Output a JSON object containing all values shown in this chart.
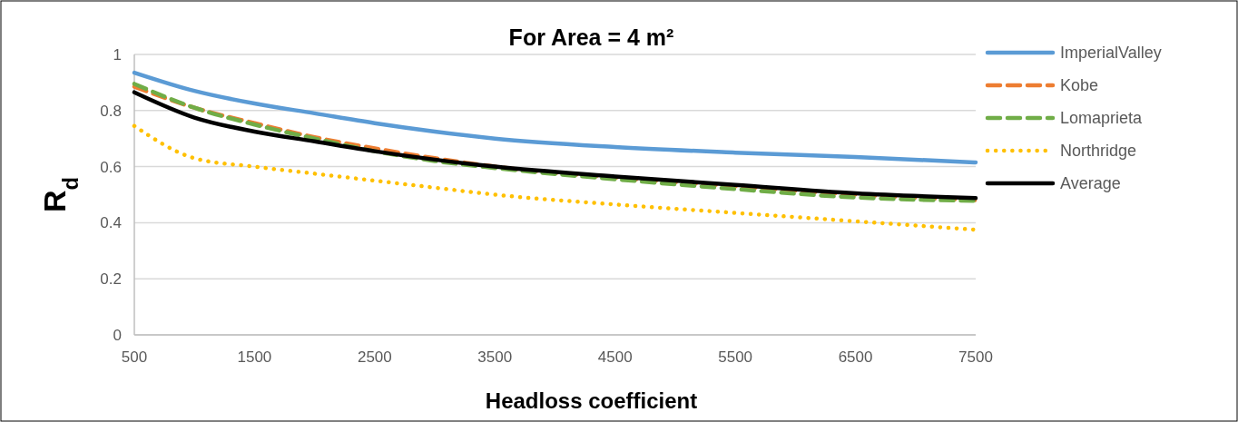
{
  "chart_data": {
    "type": "line",
    "title": "For Area = 4 m²",
    "xlabel": "Headloss coefficient",
    "ylabel": "R$_{d}$",
    "x": [
      500,
      1000,
      1500,
      2000,
      2500,
      3000,
      3500,
      4500,
      5500,
      6500,
      7500
    ],
    "series": [
      {
        "name": "ImperialValley",
        "color": "#5b9bd5",
        "line_style": "solid",
        "values": [
          0.935,
          0.87,
          0.825,
          0.79,
          0.755,
          0.725,
          0.7,
          0.67,
          0.65,
          0.634,
          0.615
        ]
      },
      {
        "name": "Kobe",
        "color": "#ed7d31",
        "line_style": "dashed",
        "values": [
          0.885,
          0.81,
          0.755,
          0.705,
          0.665,
          0.63,
          0.6,
          0.56,
          0.53,
          0.5,
          0.48
        ]
      },
      {
        "name": "Lomaprieta",
        "color": "#70ad47",
        "line_style": "dashed",
        "values": [
          0.895,
          0.81,
          0.75,
          0.7,
          0.655,
          0.62,
          0.595,
          0.555,
          0.52,
          0.49,
          0.478
        ]
      },
      {
        "name": "Northridge",
        "color": "#ffc000",
        "line_style": "dotted",
        "values": [
          0.745,
          0.63,
          0.6,
          0.575,
          0.55,
          0.525,
          0.5,
          0.465,
          0.435,
          0.405,
          0.375
        ]
      },
      {
        "name": "Average",
        "color": "#000000",
        "line_style": "solid",
        "values": [
          0.865,
          0.775,
          0.725,
          0.69,
          0.655,
          0.625,
          0.6,
          0.565,
          0.535,
          0.505,
          0.488
        ]
      }
    ],
    "xlim": [
      500,
      7500
    ],
    "xticks": [
      500,
      1500,
      2500,
      3500,
      4500,
      5500,
      6500,
      7500
    ],
    "ylim": [
      0,
      1
    ],
    "yticks": [
      0,
      0.2,
      0.4,
      0.6,
      0.8,
      1
    ],
    "grid": "y",
    "legend": "right",
    "marker": "none"
  }
}
